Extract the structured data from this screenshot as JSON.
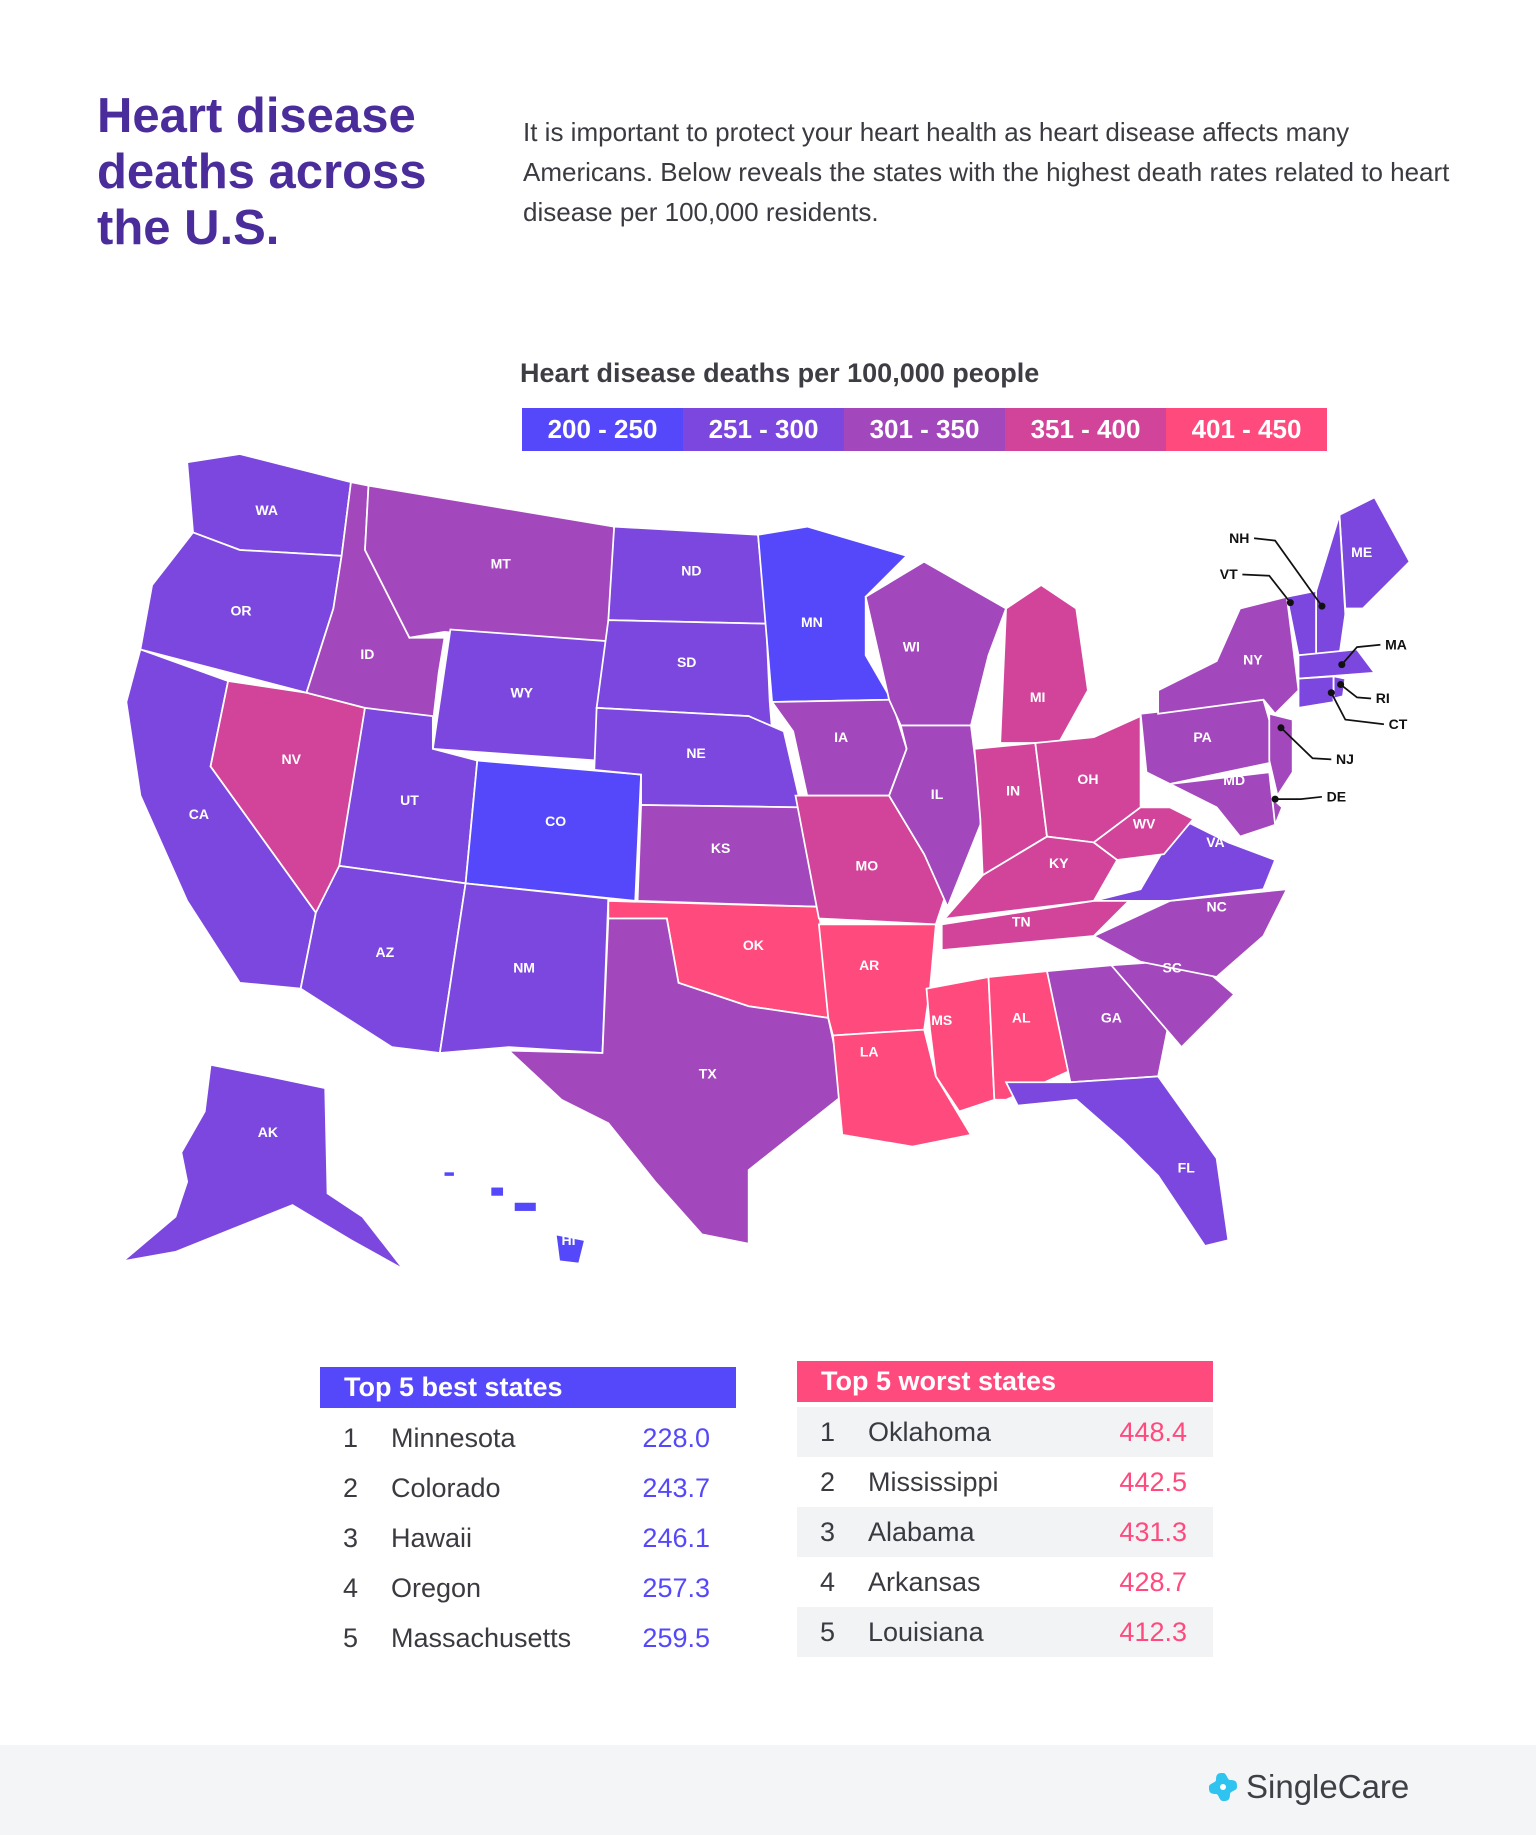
{
  "header": {
    "title": "Heart disease deaths across the U.S.",
    "intro": "It is important to protect your heart health as heart disease affects many Americans. Below reveals the states with the highest death rates related to heart disease per 100,000 residents."
  },
  "chart_data": {
    "type": "choropleth",
    "title": "Heart disease deaths per 100,000 people",
    "legend": [
      {
        "label": "200 - 250",
        "color": "#5548fa"
      },
      {
        "label": "251 - 300",
        "color": "#7c47df"
      },
      {
        "label": "301 - 350",
        "color": "#a347bd"
      },
      {
        "label": "351 - 400",
        "color": "#d2449a"
      },
      {
        "label": "401 - 450",
        "color": "#ff4a7e"
      }
    ],
    "states": [
      {
        "code": "WA",
        "bin": 1
      },
      {
        "code": "OR",
        "bin": 1
      },
      {
        "code": "CA",
        "bin": 1
      },
      {
        "code": "NV",
        "bin": 3
      },
      {
        "code": "ID",
        "bin": 2
      },
      {
        "code": "MT",
        "bin": 2
      },
      {
        "code": "WY",
        "bin": 1
      },
      {
        "code": "UT",
        "bin": 1
      },
      {
        "code": "CO",
        "bin": 0
      },
      {
        "code": "AZ",
        "bin": 1
      },
      {
        "code": "NM",
        "bin": 1
      },
      {
        "code": "ND",
        "bin": 1
      },
      {
        "code": "SD",
        "bin": 1
      },
      {
        "code": "NE",
        "bin": 1
      },
      {
        "code": "KS",
        "bin": 2
      },
      {
        "code": "OK",
        "bin": 4
      },
      {
        "code": "TX",
        "bin": 2
      },
      {
        "code": "MN",
        "bin": 0
      },
      {
        "code": "IA",
        "bin": 2
      },
      {
        "code": "MO",
        "bin": 3
      },
      {
        "code": "AR",
        "bin": 4
      },
      {
        "code": "LA",
        "bin": 4
      },
      {
        "code": "WI",
        "bin": 2
      },
      {
        "code": "IL",
        "bin": 2
      },
      {
        "code": "MI",
        "bin": 3
      },
      {
        "code": "IN",
        "bin": 3
      },
      {
        "code": "OH",
        "bin": 3
      },
      {
        "code": "KY",
        "bin": 3
      },
      {
        "code": "TN",
        "bin": 3
      },
      {
        "code": "MS",
        "bin": 4
      },
      {
        "code": "AL",
        "bin": 4
      },
      {
        "code": "GA",
        "bin": 2
      },
      {
        "code": "FL",
        "bin": 1
      },
      {
        "code": "SC",
        "bin": 2
      },
      {
        "code": "NC",
        "bin": 2
      },
      {
        "code": "VA",
        "bin": 1
      },
      {
        "code": "WV",
        "bin": 3
      },
      {
        "code": "PA",
        "bin": 2
      },
      {
        "code": "NY",
        "bin": 2
      },
      {
        "code": "NJ",
        "bin": 2
      },
      {
        "code": "DE",
        "bin": 2
      },
      {
        "code": "MD",
        "bin": 2
      },
      {
        "code": "ME",
        "bin": 1
      },
      {
        "code": "NH",
        "bin": 1
      },
      {
        "code": "VT",
        "bin": 1
      },
      {
        "code": "MA",
        "bin": 1
      },
      {
        "code": "CT",
        "bin": 1
      },
      {
        "code": "RI",
        "bin": 1
      },
      {
        "code": "AK",
        "bin": 1
      },
      {
        "code": "HI",
        "bin": 0
      }
    ]
  },
  "best": {
    "title": "Top 5 best states",
    "color": "#5548fa",
    "rows": [
      {
        "rank": "1",
        "state": "Minnesota",
        "value": "228.0"
      },
      {
        "rank": "2",
        "state": "Colorado",
        "value": "243.7"
      },
      {
        "rank": "3",
        "state": "Hawaii",
        "value": "246.1"
      },
      {
        "rank": "4",
        "state": "Oregon",
        "value": "257.3"
      },
      {
        "rank": "5",
        "state": "Massachusetts",
        "value": "259.5"
      }
    ]
  },
  "worst": {
    "title": "Top 5 worst states",
    "color": "#ff4a7e",
    "rows": [
      {
        "rank": "1",
        "state": "Oklahoma",
        "value": "448.4"
      },
      {
        "rank": "2",
        "state": "Mississippi",
        "value": "442.5"
      },
      {
        "rank": "3",
        "state": "Alabama",
        "value": "431.3"
      },
      {
        "rank": "4",
        "state": "Arkansas",
        "value": "428.7"
      },
      {
        "rank": "5",
        "state": "Louisiana",
        "value": "412.3"
      }
    ]
  },
  "footer": {
    "brand": "SingleCare"
  }
}
